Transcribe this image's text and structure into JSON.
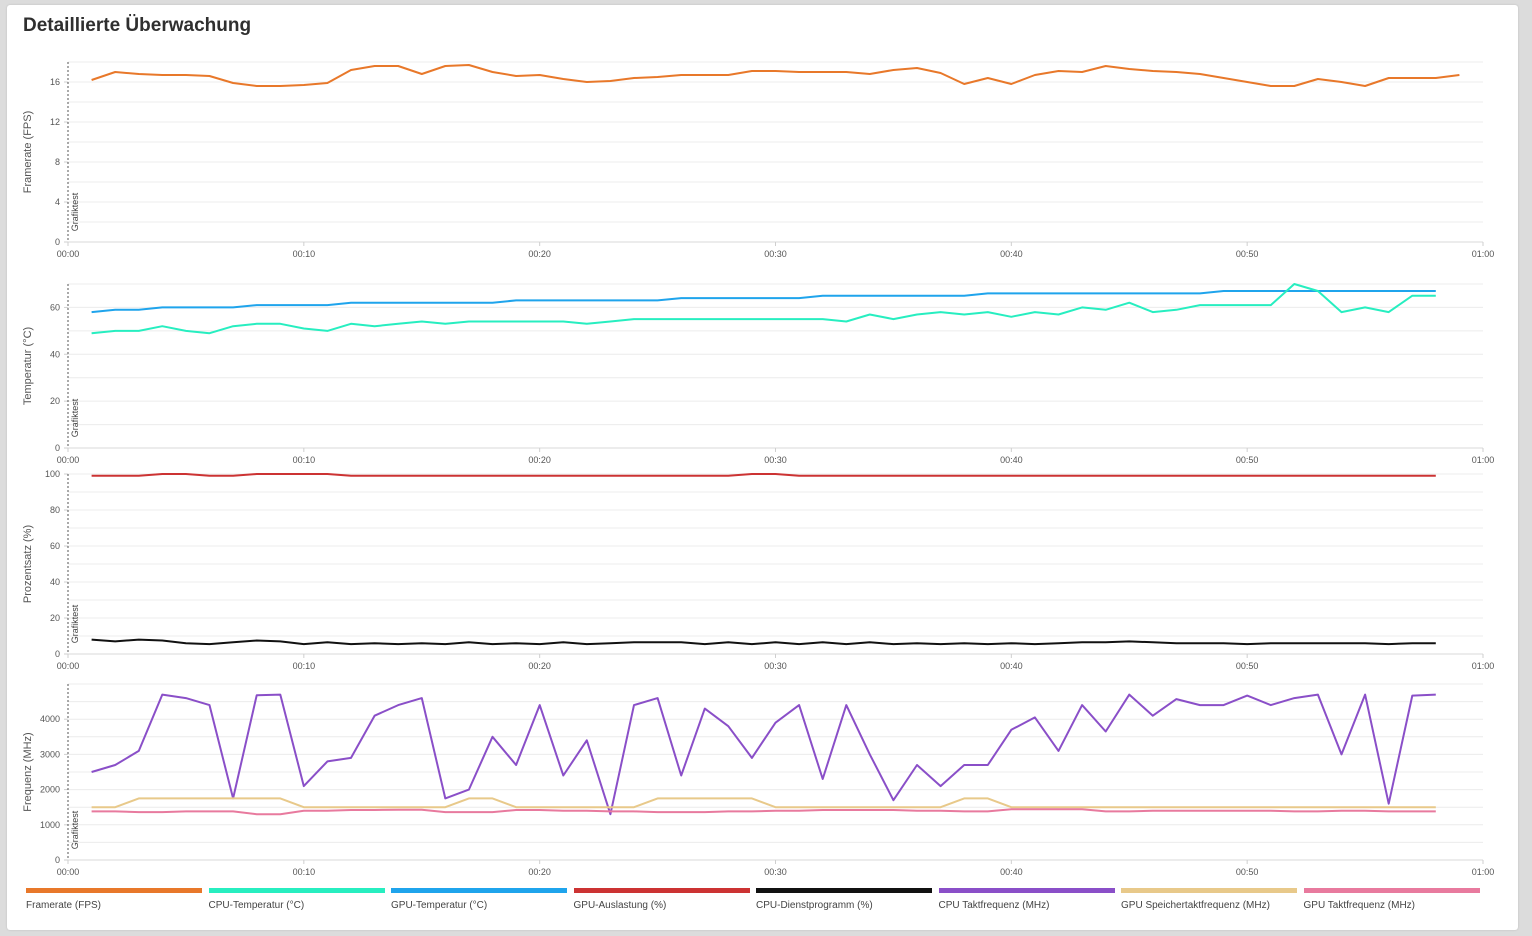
{
  "page": {
    "title": "Detaillierte Überwachung"
  },
  "x_ticks": [
    "00:00",
    "00:10",
    "00:20",
    "00:30",
    "00:40",
    "00:50",
    "01:00"
  ],
  "marker_label": "Grafiktest",
  "legend": [
    {
      "label": "Framerate (FPS)",
      "color": "#e8782a"
    },
    {
      "label": "CPU-Temperatur (°C)",
      "color": "#27eec0"
    },
    {
      "label": "GPU-Temperatur (°C)",
      "color": "#1fa4ec"
    },
    {
      "label": "GPU-Auslastung (%)",
      "color": "#cc3333"
    },
    {
      "label": "CPU-Dienstprogramm (%)",
      "color": "#111111"
    },
    {
      "label": "CPU Taktfrequenz (MHz)",
      "color": "#8a4fc8"
    },
    {
      "label": "GPU Speichertaktfrequenz (MHz)",
      "color": "#e8c98a"
    },
    {
      "label": "GPU Taktfrequenz (MHz)",
      "color": "#e87a9e"
    }
  ],
  "chart_data": [
    {
      "type": "line",
      "ylabel": "Framerate (FPS)",
      "xlim": [
        0,
        60
      ],
      "ylim": [
        0,
        18
      ],
      "y_ticks": [
        0,
        4,
        8,
        12,
        16
      ],
      "x_ticks": [
        "00:00",
        "00:10",
        "00:20",
        "00:30",
        "00:40",
        "00:50",
        "01:00"
      ],
      "series": [
        {
          "name": "Framerate (FPS)",
          "color": "#e8782a",
          "x": [
            1,
            2,
            3,
            4,
            5,
            6,
            7,
            8,
            9,
            10,
            11,
            12,
            13,
            14,
            15,
            16,
            17,
            18,
            19,
            20,
            21,
            22,
            23,
            24,
            25,
            26,
            27,
            28,
            29,
            30,
            31,
            32,
            33,
            34,
            35,
            36,
            37,
            38,
            39,
            40,
            41,
            42,
            43,
            44,
            45,
            46,
            47,
            48,
            49,
            50,
            51,
            52,
            53,
            54,
            55,
            56,
            57,
            58,
            59
          ],
          "y": [
            16.2,
            17,
            16.8,
            16.7,
            16.7,
            16.6,
            15.9,
            15.6,
            15.6,
            15.7,
            15.9,
            17.2,
            17.6,
            17.6,
            16.8,
            17.6,
            17.7,
            17.0,
            16.6,
            16.7,
            16.3,
            16.0,
            16.1,
            16.4,
            16.5,
            16.7,
            16.7,
            16.7,
            17.1,
            17.1,
            17.0,
            17.0,
            17.0,
            16.8,
            17.2,
            17.4,
            16.9,
            15.8,
            16.4,
            15.8,
            16.7,
            17.1,
            17.0,
            17.6,
            17.3,
            17.1,
            17.0,
            16.8,
            16.4,
            16.0,
            15.6,
            15.6,
            16.3,
            16.0,
            15.6,
            16.4,
            16.4,
            16.4,
            16.7
          ]
        }
      ]
    },
    {
      "type": "line",
      "ylabel": "Temperatur (°C)",
      "xlim": [
        0,
        60
      ],
      "ylim": [
        0,
        70
      ],
      "y_ticks": [
        0,
        20,
        40,
        60
      ],
      "x_ticks": [
        "00:00",
        "00:10",
        "00:20",
        "00:30",
        "00:40",
        "00:50",
        "01:00"
      ],
      "series": [
        {
          "name": "GPU-Temperatur (°C)",
          "color": "#1fa4ec",
          "x": [
            1,
            2,
            3,
            4,
            5,
            6,
            7,
            8,
            9,
            10,
            11,
            12,
            13,
            14,
            15,
            16,
            17,
            18,
            19,
            20,
            21,
            22,
            23,
            24,
            25,
            26,
            27,
            28,
            29,
            30,
            31,
            32,
            33,
            34,
            35,
            36,
            37,
            38,
            39,
            40,
            41,
            42,
            43,
            44,
            45,
            46,
            47,
            48,
            49,
            50,
            51,
            52,
            53,
            54,
            55,
            56,
            57,
            58
          ],
          "y": [
            58,
            59,
            59,
            60,
            60,
            60,
            60,
            61,
            61,
            61,
            61,
            62,
            62,
            62,
            62,
            62,
            62,
            62,
            63,
            63,
            63,
            63,
            63,
            63,
            63,
            64,
            64,
            64,
            64,
            64,
            64,
            65,
            65,
            65,
            65,
            65,
            65,
            65,
            66,
            66,
            66,
            66,
            66,
            66,
            66,
            66,
            66,
            66,
            67,
            67,
            67,
            67,
            67,
            67,
            67,
            67,
            67,
            67
          ]
        },
        {
          "name": "CPU-Temperatur (°C)",
          "color": "#27eec0",
          "x": [
            1,
            2,
            3,
            4,
            5,
            6,
            7,
            8,
            9,
            10,
            11,
            12,
            13,
            14,
            15,
            16,
            17,
            18,
            19,
            20,
            21,
            22,
            23,
            24,
            25,
            26,
            27,
            28,
            29,
            30,
            31,
            32,
            33,
            34,
            35,
            36,
            37,
            38,
            39,
            40,
            41,
            42,
            43,
            44,
            45,
            46,
            47,
            48,
            49,
            50,
            51,
            52,
            53,
            54,
            55,
            56,
            57,
            58
          ],
          "y": [
            49,
            50,
            50,
            52,
            50,
            49,
            52,
            53,
            53,
            51,
            50,
            53,
            52,
            53,
            54,
            53,
            54,
            54,
            54,
            54,
            54,
            53,
            54,
            55,
            55,
            55,
            55,
            55,
            55,
            55,
            55,
            55,
            54,
            57,
            55,
            57,
            58,
            57,
            58,
            56,
            58,
            57,
            60,
            59,
            62,
            58,
            59,
            61,
            61,
            61,
            61,
            70,
            67,
            58,
            60,
            58,
            65,
            65
          ]
        }
      ]
    },
    {
      "type": "line",
      "ylabel": "Prozentsatz (%)",
      "xlim": [
        0,
        60
      ],
      "ylim": [
        0,
        100
      ],
      "y_ticks": [
        0,
        20,
        40,
        60,
        80,
        100
      ],
      "x_ticks": [
        "00:00",
        "00:10",
        "00:20",
        "00:30",
        "00:40",
        "00:50",
        "01:00"
      ],
      "series": [
        {
          "name": "GPU-Auslastung (%)",
          "color": "#cc3333",
          "x": [
            1,
            2,
            3,
            4,
            5,
            6,
            7,
            8,
            9,
            10,
            11,
            12,
            13,
            14,
            15,
            16,
            17,
            18,
            19,
            20,
            21,
            22,
            23,
            24,
            25,
            26,
            27,
            28,
            29,
            30,
            31,
            32,
            33,
            34,
            35,
            36,
            37,
            38,
            39,
            40,
            41,
            42,
            43,
            44,
            45,
            46,
            47,
            48,
            49,
            50,
            51,
            52,
            53,
            54,
            55,
            56,
            57,
            58
          ],
          "y": [
            99,
            99,
            99,
            100,
            100,
            99,
            99,
            100,
            100,
            100,
            100,
            99,
            99,
            99,
            99,
            99,
            99,
            99,
            99,
            99,
            99,
            99,
            99,
            99,
            99,
            99,
            99,
            99,
            100,
            100,
            99,
            99,
            99,
            99,
            99,
            99,
            99,
            99,
            99,
            99,
            99,
            99,
            99,
            99,
            99,
            99,
            99,
            99,
            99,
            99,
            99,
            99,
            99,
            99,
            99,
            99,
            99,
            99
          ]
        },
        {
          "name": "CPU-Dienstprogramm (%)",
          "color": "#111111",
          "x": [
            1,
            2,
            3,
            4,
            5,
            6,
            7,
            8,
            9,
            10,
            11,
            12,
            13,
            14,
            15,
            16,
            17,
            18,
            19,
            20,
            21,
            22,
            23,
            24,
            25,
            26,
            27,
            28,
            29,
            30,
            31,
            32,
            33,
            34,
            35,
            36,
            37,
            38,
            39,
            40,
            41,
            42,
            43,
            44,
            45,
            46,
            47,
            48,
            49,
            50,
            51,
            52,
            53,
            54,
            55,
            56,
            57,
            58
          ],
          "y": [
            8,
            7,
            8,
            7.5,
            6,
            5.5,
            6.5,
            7.5,
            7,
            5.5,
            6.5,
            5.5,
            6,
            5.5,
            6,
            5.5,
            6.5,
            5.5,
            6,
            5.5,
            6.5,
            5.5,
            6,
            6.5,
            6.5,
            6.5,
            5.5,
            6.5,
            5.5,
            6.5,
            5.5,
            6.5,
            5.5,
            6.5,
            5.5,
            6,
            5.5,
            6,
            5.5,
            6,
            5.5,
            6,
            6.5,
            6.5,
            7,
            6.5,
            6,
            6,
            6,
            5.5,
            6,
            6,
            6,
            6,
            6,
            5.5,
            6,
            6
          ]
        }
      ]
    },
    {
      "type": "line",
      "ylabel": "Frequenz (MHz)",
      "xlim": [
        0,
        60
      ],
      "ylim": [
        0,
        5000
      ],
      "y_ticks": [
        0,
        1000,
        2000,
        3000,
        4000
      ],
      "x_ticks": [
        "00:00",
        "00:10",
        "00:20",
        "00:30",
        "00:40",
        "00:50",
        "01:00"
      ],
      "series": [
        {
          "name": "CPU Taktfrequenz (MHz)",
          "color": "#8a4fc8",
          "x": [
            1,
            2,
            3,
            4,
            5,
            6,
            7,
            8,
            9,
            10,
            11,
            12,
            13,
            14,
            15,
            16,
            17,
            18,
            19,
            20,
            21,
            22,
            23,
            24,
            25,
            26,
            27,
            28,
            29,
            30,
            31,
            32,
            33,
            34,
            35,
            36,
            37,
            38,
            39,
            40,
            41,
            42,
            43,
            44,
            45,
            46,
            47,
            48,
            49,
            50,
            51,
            52,
            53,
            54,
            55,
            56,
            57,
            58
          ],
          "y": [
            2500,
            2700,
            3100,
            4700,
            4600,
            4400,
            1750,
            4680,
            4700,
            2100,
            2800,
            2900,
            4100,
            4400,
            4600,
            1750,
            2000,
            3500,
            2700,
            4400,
            2400,
            3400,
            1300,
            4400,
            4600,
            2400,
            4300,
            3800,
            2900,
            3900,
            4400,
            2300,
            4400,
            3000,
            1700,
            2700,
            2100,
            2700,
            2700,
            3700,
            4050,
            3100,
            4400,
            3650,
            4700,
            4100,
            4570,
            4400,
            4400,
            4670,
            4400,
            4600,
            4700,
            3000,
            4700,
            1600,
            4670,
            4700
          ]
        },
        {
          "name": "GPU Speichertaktfrequenz (MHz)",
          "color": "#e8c98a",
          "x": [
            1,
            2,
            3,
            4,
            5,
            6,
            7,
            8,
            9,
            10,
            11,
            12,
            13,
            14,
            15,
            16,
            17,
            18,
            19,
            20,
            21,
            22,
            23,
            24,
            25,
            26,
            27,
            28,
            29,
            30,
            31,
            32,
            33,
            34,
            35,
            36,
            37,
            38,
            39,
            40,
            41,
            42,
            43,
            44,
            45,
            46,
            47,
            48,
            49,
            50,
            51,
            52,
            53,
            54,
            55,
            56,
            57,
            58
          ],
          "y": [
            1500,
            1500,
            1750,
            1750,
            1750,
            1750,
            1750,
            1750,
            1750,
            1500,
            1500,
            1500,
            1500,
            1500,
            1500,
            1500,
            1750,
            1750,
            1500,
            1500,
            1500,
            1500,
            1500,
            1500,
            1750,
            1750,
            1750,
            1750,
            1750,
            1500,
            1500,
            1500,
            1500,
            1500,
            1500,
            1500,
            1500,
            1750,
            1750,
            1500,
            1500,
            1500,
            1500,
            1500,
            1500,
            1500,
            1500,
            1500,
            1500,
            1500,
            1500,
            1500,
            1500,
            1500,
            1500,
            1500,
            1500,
            1500
          ]
        },
        {
          "name": "GPU Taktfrequenz (MHz)",
          "color": "#e87a9e",
          "x": [
            1,
            2,
            3,
            4,
            5,
            6,
            7,
            8,
            9,
            10,
            11,
            12,
            13,
            14,
            15,
            16,
            17,
            18,
            19,
            20,
            21,
            22,
            23,
            24,
            25,
            26,
            27,
            28,
            29,
            30,
            31,
            32,
            33,
            34,
            35,
            36,
            37,
            38,
            39,
            40,
            41,
            42,
            43,
            44,
            45,
            46,
            47,
            48,
            49,
            50,
            51,
            52,
            53,
            54,
            55,
            56,
            57,
            58
          ],
          "y": [
            1380,
            1380,
            1360,
            1360,
            1380,
            1380,
            1380,
            1300,
            1300,
            1400,
            1400,
            1420,
            1420,
            1430,
            1430,
            1360,
            1360,
            1360,
            1420,
            1420,
            1400,
            1400,
            1380,
            1380,
            1360,
            1360,
            1360,
            1380,
            1380,
            1400,
            1400,
            1420,
            1420,
            1420,
            1420,
            1400,
            1400,
            1380,
            1380,
            1440,
            1440,
            1440,
            1440,
            1380,
            1380,
            1400,
            1400,
            1400,
            1400,
            1400,
            1400,
            1380,
            1380,
            1400,
            1400,
            1380,
            1380,
            1380
          ]
        }
      ]
    }
  ]
}
